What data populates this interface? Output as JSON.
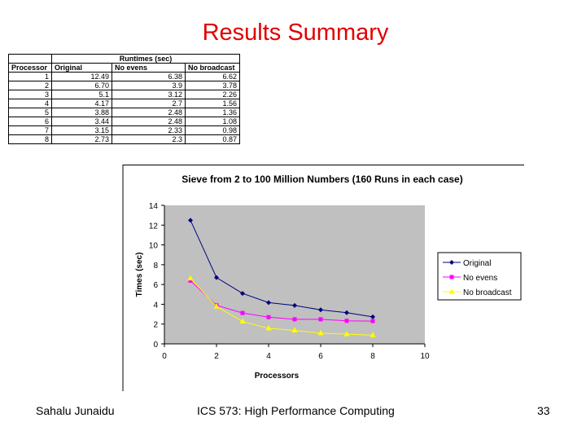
{
  "slide": {
    "title": "Results Summary",
    "footer_left": "Sahalu Junaidu",
    "footer_center": "ICS 573: High Performance Computing",
    "page_number": "33"
  },
  "table": {
    "group_header": "Runtimes (sec)",
    "columns": [
      "Processor",
      "Original",
      "No evens",
      "No broadcast"
    ],
    "rows": [
      [
        "1",
        "12.49",
        "6.38",
        "6.62"
      ],
      [
        "2",
        "6.70",
        "3.9",
        "3.78"
      ],
      [
        "3",
        "5.1",
        "3.12",
        "2.26"
      ],
      [
        "4",
        "4.17",
        "2.7",
        "1.56"
      ],
      [
        "5",
        "3.88",
        "2.48",
        "1.36"
      ],
      [
        "6",
        "3.44",
        "2.48",
        "1.08"
      ],
      [
        "7",
        "3.15",
        "2.33",
        "0.98"
      ],
      [
        "8",
        "2.73",
        "2.3",
        "0.87"
      ]
    ]
  },
  "chart_data": {
    "type": "line",
    "title": "Sieve from 2 to 100 Million Numbers (160 Runs in each case)",
    "xlabel": "Processors",
    "ylabel": "Times (sec)",
    "xlim": [
      0,
      10
    ],
    "ylim": [
      0,
      14
    ],
    "xticks": [
      0,
      2,
      4,
      6,
      8,
      10
    ],
    "yticks": [
      0,
      2,
      4,
      6,
      8,
      10,
      12,
      14
    ],
    "x": [
      1,
      2,
      3,
      4,
      5,
      6,
      7,
      8
    ],
    "legend_position": "right",
    "grid": false,
    "series": [
      {
        "name": "Original",
        "color": "#000080",
        "marker": "diamond",
        "values": [
          12.49,
          6.7,
          5.1,
          4.17,
          3.88,
          3.44,
          3.15,
          2.73
        ]
      },
      {
        "name": "No evens",
        "color": "#ff00ff",
        "marker": "square",
        "values": [
          6.38,
          3.9,
          3.12,
          2.7,
          2.48,
          2.48,
          2.33,
          2.3
        ]
      },
      {
        "name": "No broadcast",
        "color": "#ffff00",
        "marker": "triangle",
        "values": [
          6.62,
          3.78,
          2.26,
          1.56,
          1.36,
          1.08,
          0.98,
          0.87
        ]
      }
    ]
  }
}
